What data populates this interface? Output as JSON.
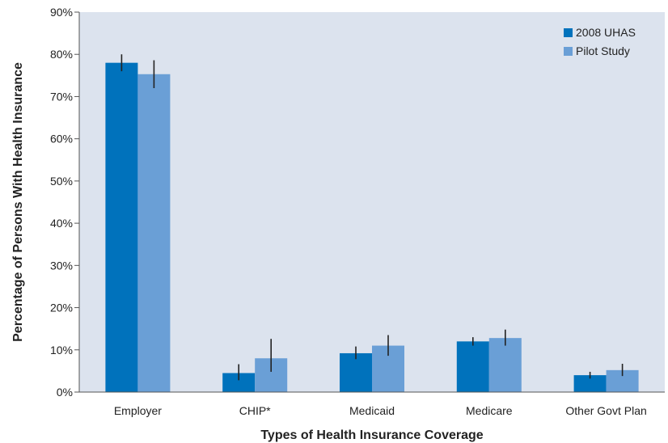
{
  "chart_data": {
    "type": "bar",
    "title": "",
    "xlabel": "Types of Health Insurance Coverage",
    "ylabel": "Percentage of Persons With Health Insurance",
    "categories": [
      "Employer",
      "CHIP*",
      "Medicaid",
      "Medicare",
      "Other Govt Plan"
    ],
    "series": [
      {
        "name": "2008 UHAS",
        "color": "#0072bc",
        "values": [
          78,
          4.5,
          9.2,
          12,
          4
        ],
        "error": [
          [
            76,
            80
          ],
          [
            2.8,
            6.6
          ],
          [
            7.8,
            10.8
          ],
          [
            11,
            13
          ],
          [
            3.2,
            4.8
          ]
        ]
      },
      {
        "name": "Pilot Study",
        "color": "#6a9fd6",
        "values": [
          75.3,
          8,
          11,
          12.8,
          5.2
        ],
        "error": [
          [
            72,
            78.6
          ],
          [
            4.8,
            12.6
          ],
          [
            8.6,
            13.5
          ],
          [
            11,
            14.8
          ],
          [
            3.8,
            6.7
          ]
        ]
      }
    ],
    "ylim": [
      0,
      90
    ],
    "yticks": [
      "0%",
      "10%",
      "20%",
      "30%",
      "40%",
      "50%",
      "60%",
      "70%",
      "80%",
      "90%"
    ],
    "ytick_values": [
      0,
      10,
      20,
      30,
      40,
      50,
      60,
      70,
      80,
      90
    ],
    "plot_background": "#dce3ee",
    "grid": false,
    "legend_position": "top-right"
  }
}
